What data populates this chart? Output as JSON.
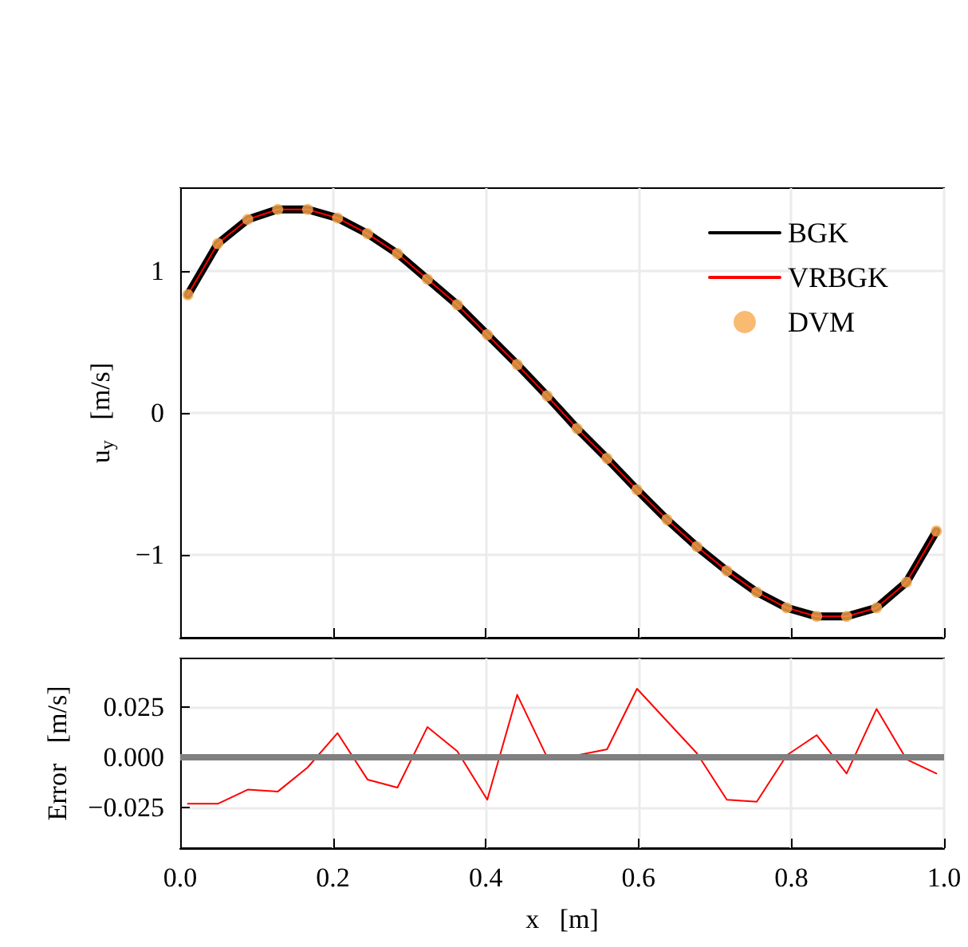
{
  "chart_data": [
    {
      "type": "line",
      "ylabel": "u$_{y}$   [m/s]",
      "x": [
        0.01,
        0.0492,
        0.0884,
        0.1276,
        0.1668,
        0.206,
        0.2452,
        0.2844,
        0.3236,
        0.3628,
        0.402,
        0.4412,
        0.4804,
        0.5196,
        0.5588,
        0.598,
        0.6372,
        0.6764,
        0.7156,
        0.7548,
        0.794,
        0.8332,
        0.8724,
        0.9116,
        0.9508,
        0.99
      ],
      "series": [
        {
          "name": "BGK",
          "color": "#000000",
          "values": [
            0.83,
            1.19,
            1.36,
            1.43,
            1.43,
            1.37,
            1.26,
            1.12,
            0.94,
            0.76,
            0.55,
            0.34,
            0.12,
            -0.11,
            -0.32,
            -0.54,
            -0.75,
            -0.94,
            -1.11,
            -1.26,
            -1.37,
            -1.43,
            -1.43,
            -1.37,
            -1.19,
            -0.83
          ]
        },
        {
          "name": "VRBGK",
          "color": "#ff0000",
          "values": [
            0.83,
            1.19,
            1.36,
            1.43,
            1.43,
            1.37,
            1.26,
            1.12,
            0.94,
            0.76,
            0.55,
            0.34,
            0.12,
            -0.11,
            -0.32,
            -0.54,
            -0.75,
            -0.94,
            -1.11,
            -1.26,
            -1.37,
            -1.43,
            -1.43,
            -1.37,
            -1.19,
            -0.83
          ]
        },
        {
          "name": "DVM",
          "type": "scatter",
          "marker": "circle",
          "color": "#f7a94f",
          "values": [
            0.83,
            1.19,
            1.36,
            1.43,
            1.43,
            1.37,
            1.26,
            1.12,
            0.94,
            0.76,
            0.55,
            0.34,
            0.12,
            -0.11,
            -0.32,
            -0.54,
            -0.75,
            -0.94,
            -1.11,
            -1.26,
            -1.37,
            -1.43,
            -1.43,
            -1.37,
            -1.19,
            -0.83
          ]
        }
      ],
      "xlim": [
        0,
        1
      ],
      "xticks": [
        0,
        0.2,
        0.4,
        0.6,
        0.8,
        1
      ],
      "ylim": [
        -1.58,
        1.58
      ],
      "yticks": [
        {
          "value": -1,
          "label": "−1"
        },
        0,
        1
      ],
      "tick_labels": "y",
      "grid": true,
      "legend": "top right"
    },
    {
      "type": "line",
      "xlabel": "x   [m]",
      "ylabel": "Error   [m/s]",
      "x": [
        0.01,
        0.0492,
        0.0884,
        0.1276,
        0.1668,
        0.206,
        0.2452,
        0.2844,
        0.3236,
        0.3628,
        0.402,
        0.4412,
        0.4804,
        0.5196,
        0.5588,
        0.598,
        0.6372,
        0.6764,
        0.7156,
        0.7548,
        0.794,
        0.8332,
        0.8724,
        0.9116,
        0.9508,
        0.99
      ],
      "series": [
        {
          "color": "#ff0000",
          "values": [
            -0.023,
            -0.023,
            -0.016,
            -0.017,
            -0.005,
            0.012,
            -0.011,
            -0.015,
            0.015,
            0.003,
            -0.021,
            0.031,
            0.0,
            0.001,
            0.004,
            0.034,
            0.018,
            0.002,
            -0.021,
            -0.022,
            0.001,
            0.011,
            -0.008,
            0.024,
            -0.001,
            -0.008
          ]
        }
      ],
      "xlim": [
        0,
        1
      ],
      "xticks": [
        {
          "value": 0,
          "label": "0.0"
        },
        {
          "value": 0.2,
          "label": "0.2"
        },
        {
          "value": 0.4,
          "label": "0.4"
        },
        {
          "value": 0.6,
          "label": "0.6"
        },
        {
          "value": 0.8,
          "label": "0.8"
        },
        {
          "value": 1,
          "label": "1.0"
        }
      ],
      "ylim": [
        -0.045,
        0.049
      ],
      "yticks": [
        {
          "value": -0.025,
          "label": "−0.025"
        },
        {
          "value": 0,
          "label": "0.000"
        },
        {
          "value": 0.025,
          "label": "0.025"
        }
      ],
      "grid": true,
      "ref_lines": [
        {
          "axis": "y",
          "value": 0,
          "color": "#808080"
        }
      ]
    }
  ]
}
